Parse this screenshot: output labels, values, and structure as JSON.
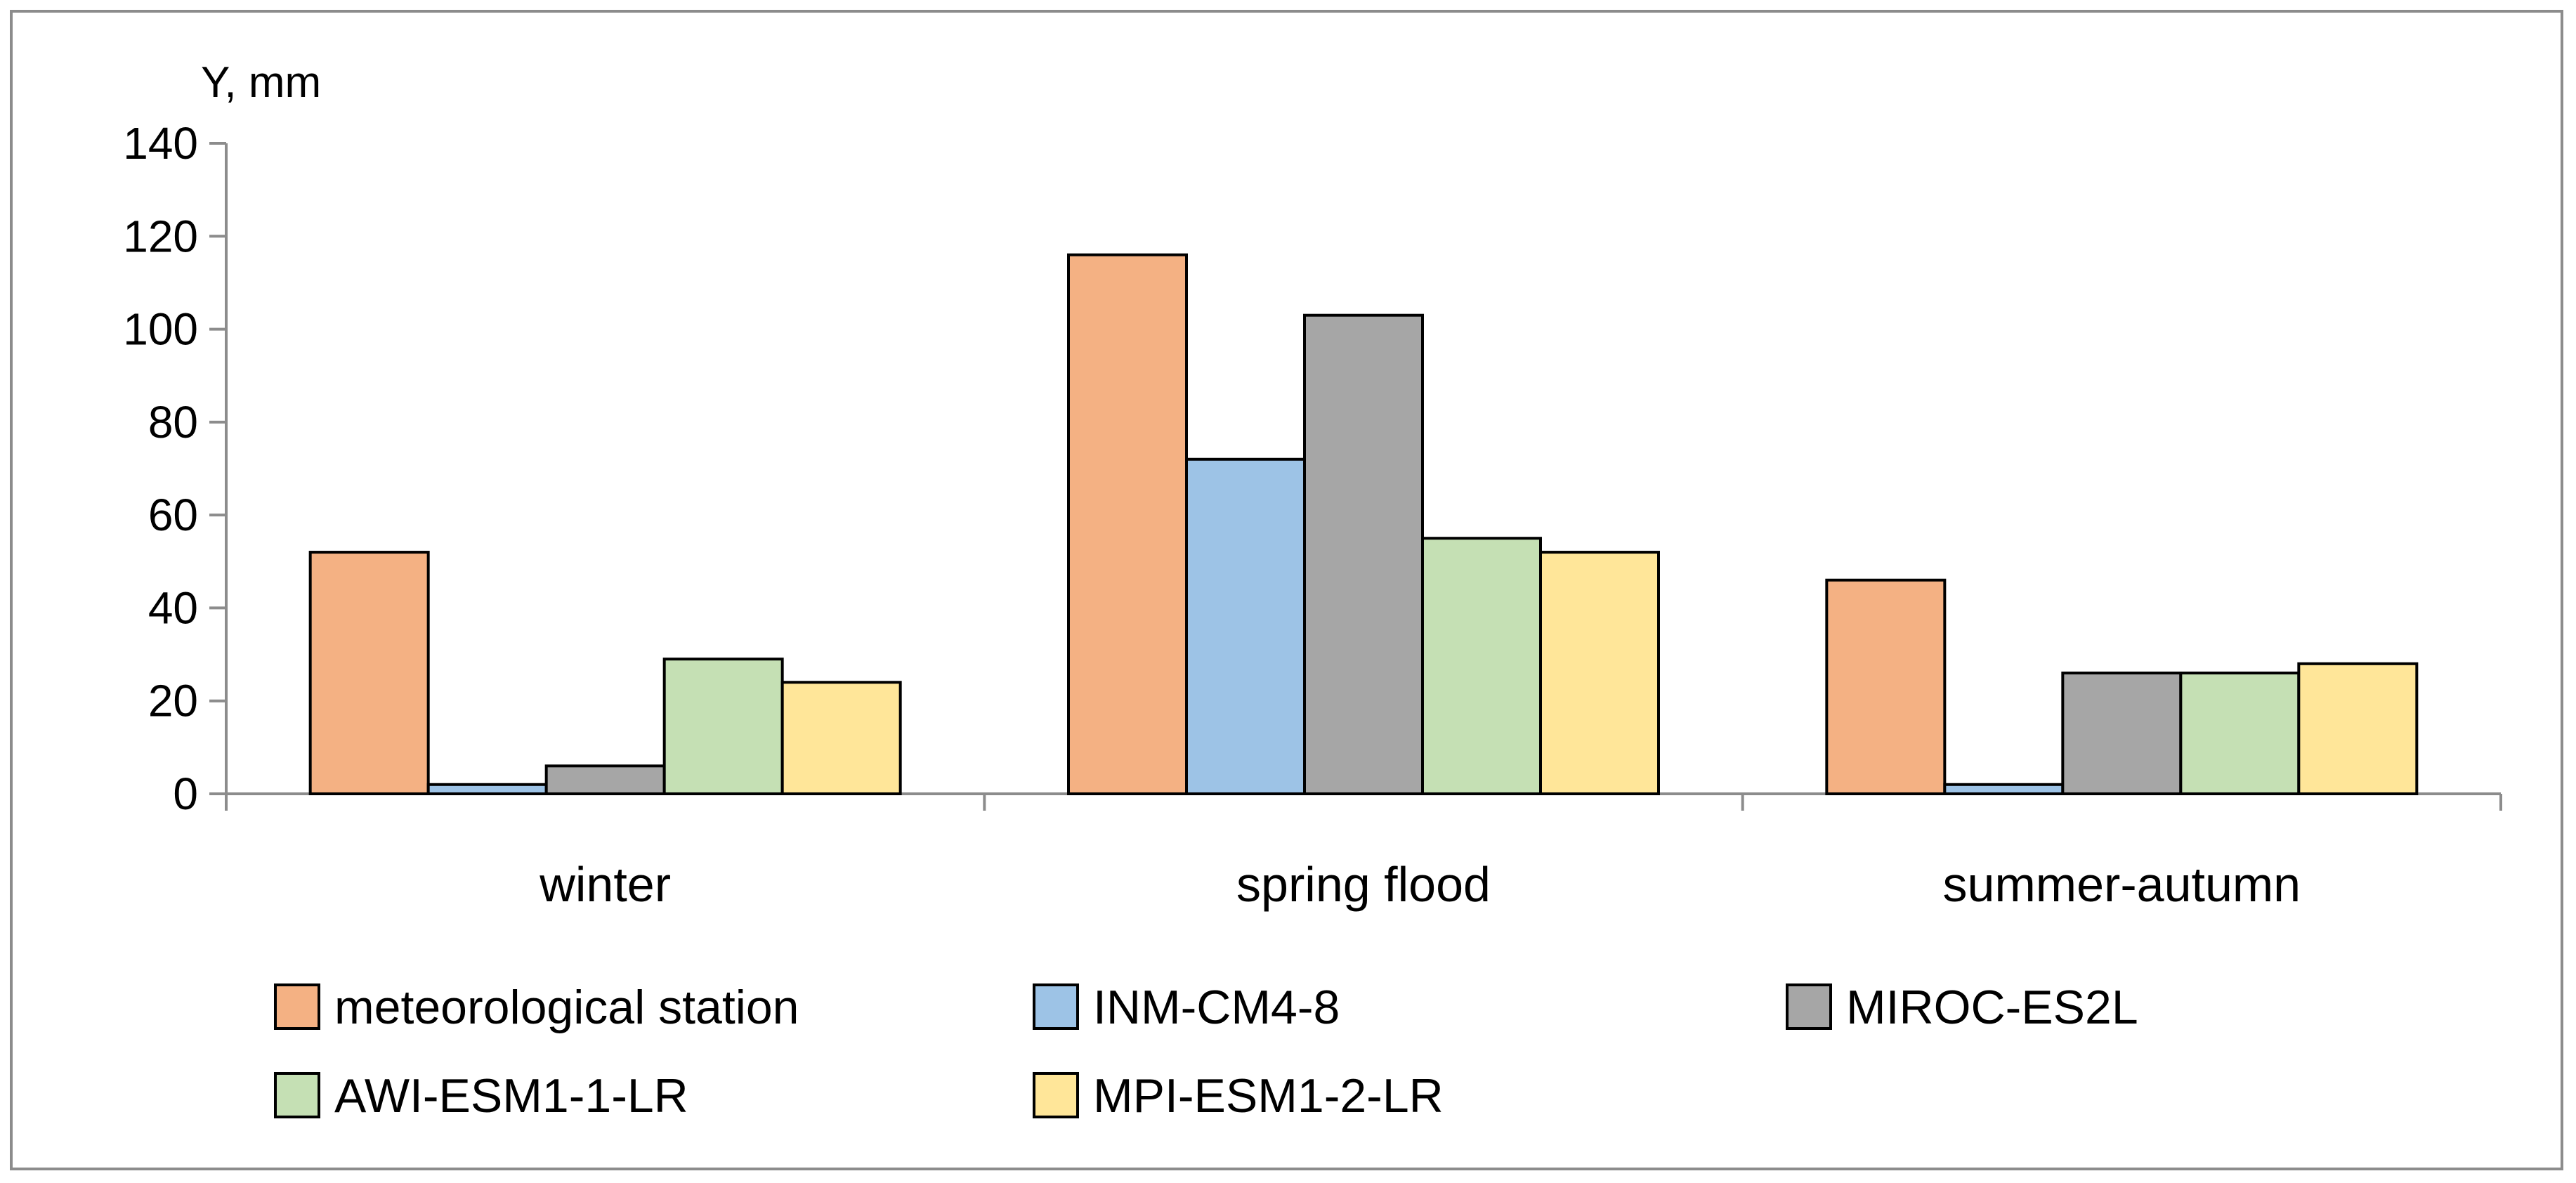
{
  "chart_data": {
    "type": "bar",
    "title": "",
    "ylabel": "Y, mm",
    "xlabel": "",
    "ylim": [
      0,
      140
    ],
    "yticks": [
      0,
      20,
      40,
      60,
      80,
      100,
      120,
      140
    ],
    "yticks_labels": [
      "0",
      "20",
      "40",
      "60",
      "80",
      "100",
      "120",
      "140"
    ],
    "categories": [
      "winter",
      "spring flood",
      "summer-autumn"
    ],
    "series": [
      {
        "name": "meteorological station",
        "color": "#F4B183",
        "values": [
          52,
          116,
          46
        ]
      },
      {
        "name": "INM-CM4-8",
        "color": "#9DC3E6",
        "values": [
          2,
          72,
          2
        ]
      },
      {
        "name": "MIROC-ES2L",
        "color": "#A6A6A6",
        "values": [
          6,
          103,
          26
        ]
      },
      {
        "name": "AWI-ESM1-1-LR",
        "color": "#C5E0B4",
        "values": [
          29,
          55,
          26
        ]
      },
      {
        "name": "MPI-ESM1-2-LR",
        "color": "#FFE699",
        "values": [
          24,
          52,
          28
        ]
      }
    ],
    "legend_position": "bottom",
    "grid": false
  }
}
